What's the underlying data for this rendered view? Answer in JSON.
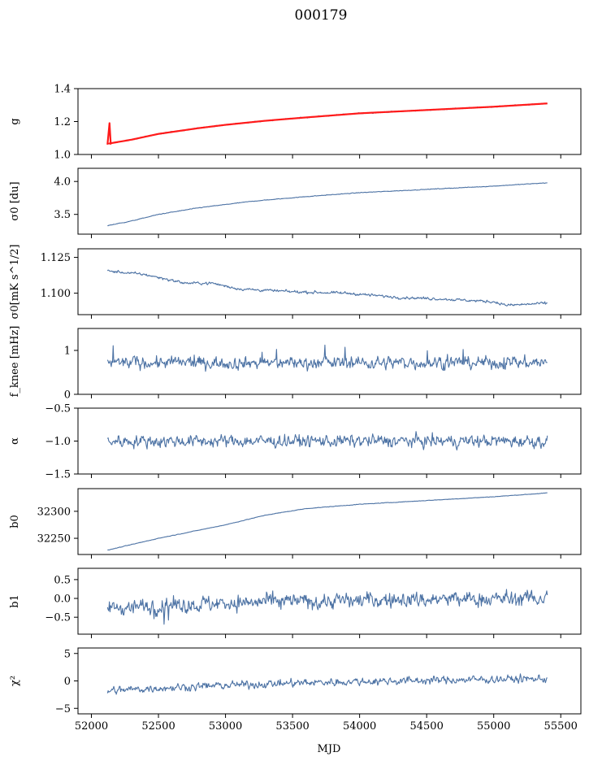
{
  "figure": {
    "title": "000179"
  },
  "chart_data": {
    "type": "line",
    "title": "000179",
    "xlabel": "MJD",
    "xlim": [
      51900,
      55650
    ],
    "x_ticks": [
      52000,
      52500,
      53000,
      53500,
      54000,
      54500,
      55000,
      55500
    ],
    "x_range_of_data": [
      52120,
      55400
    ],
    "line_color": "#4c72a4",
    "fit_color": "#ff1a1a",
    "panels": [
      {
        "id": "g",
        "ylabel": "g",
        "ylim": [
          1.0,
          1.4
        ],
        "yticks": [
          1.0,
          1.2,
          1.4
        ],
        "tick_format": "1.1",
        "trend": [
          [
            52120,
            1.065
          ],
          [
            52300,
            1.09
          ],
          [
            52500,
            1.125
          ],
          [
            52800,
            1.16
          ],
          [
            53000,
            1.18
          ],
          [
            53300,
            1.205
          ],
          [
            53600,
            1.225
          ],
          [
            54000,
            1.25
          ],
          [
            54500,
            1.27
          ],
          [
            55000,
            1.29
          ],
          [
            55400,
            1.31
          ]
        ],
        "noise": 0.003,
        "overlay": "fit",
        "spike": [
          52135,
          1.06,
          1.19
        ]
      },
      {
        "id": "sigma0_du",
        "ylabel": "σ0 [du]",
        "ylim": [
          3.2,
          4.2
        ],
        "yticks": [
          3.5,
          4.0
        ],
        "tick_format": "1.1",
        "trend": [
          [
            52120,
            3.33
          ],
          [
            52300,
            3.4
          ],
          [
            52500,
            3.5
          ],
          [
            52800,
            3.6
          ],
          [
            53200,
            3.7
          ],
          [
            53600,
            3.77
          ],
          [
            54000,
            3.83
          ],
          [
            54500,
            3.88
          ],
          [
            55000,
            3.93
          ],
          [
            55400,
            3.98
          ]
        ],
        "noise": 0.004
      },
      {
        "id": "sigma0_mk",
        "ylabel": "σ0[mK s^1/2]",
        "ylim": [
          1.085,
          1.131
        ],
        "yticks": [
          1.1,
          1.125
        ],
        "tick_format": "1.3",
        "trend": [
          [
            52120,
            1.1155
          ],
          [
            52400,
            1.113
          ],
          [
            52700,
            1.107
          ],
          [
            52900,
            1.107
          ],
          [
            53100,
            1.103
          ],
          [
            53500,
            1.101
          ],
          [
            53900,
            1.1
          ],
          [
            54300,
            1.097
          ],
          [
            54600,
            1.096
          ],
          [
            55000,
            1.094
          ],
          [
            55100,
            1.0915
          ],
          [
            55400,
            1.093
          ]
        ],
        "noise": 0.0008
      },
      {
        "id": "fknee",
        "ylabel": "f_knee [mHz]",
        "ylim": [
          0,
          1.5
        ],
        "yticks": [
          0,
          1
        ],
        "tick_format": "1.0",
        "trend": [
          [
            52120,
            0.72
          ],
          [
            55400,
            0.72
          ]
        ],
        "noise": 0.12
      },
      {
        "id": "alpha",
        "ylabel": "α",
        "ylim": [
          -1.5,
          -0.5
        ],
        "yticks": [
          -1.5,
          -1.0,
          -0.5
        ],
        "tick_format": "1.1",
        "trend": [
          [
            52120,
            -1.0
          ],
          [
            55400,
            -1.0
          ]
        ],
        "noise": 0.08
      },
      {
        "id": "b0",
        "ylabel": "b0",
        "ylim": [
          32220,
          32342
        ],
        "yticks": [
          32250,
          32300
        ],
        "tick_format": "1.0",
        "trend": [
          [
            52120,
            32228
          ],
          [
            52500,
            32250
          ],
          [
            53000,
            32275
          ],
          [
            53300,
            32293
          ],
          [
            53600,
            32305
          ],
          [
            54000,
            32313
          ],
          [
            54500,
            32320
          ],
          [
            55000,
            32327
          ],
          [
            55400,
            32334
          ]
        ],
        "noise": 0.4
      },
      {
        "id": "b1",
        "ylabel": "b1",
        "ylim": [
          -0.95,
          0.8
        ],
        "yticks": [
          -0.5,
          0.0,
          0.5
        ],
        "tick_format": "1.1",
        "trend": [
          [
            52120,
            -0.25
          ],
          [
            53000,
            -0.12
          ],
          [
            54000,
            -0.05
          ],
          [
            55400,
            0.0
          ]
        ],
        "noise": 0.18
      },
      {
        "id": "chi2",
        "ylabel": "χ²",
        "ylim": [
          -6,
          6
        ],
        "yticks": [
          -5,
          0,
          5
        ],
        "tick_format": "1.0",
        "trend": [
          [
            52120,
            -1.8
          ],
          [
            52500,
            -1.3
          ],
          [
            53000,
            -0.8
          ],
          [
            53500,
            -0.4
          ],
          [
            54000,
            -0.1
          ],
          [
            54500,
            0.1
          ],
          [
            55000,
            0.3
          ],
          [
            55400,
            0.4
          ]
        ],
        "noise": 0.6
      }
    ]
  }
}
